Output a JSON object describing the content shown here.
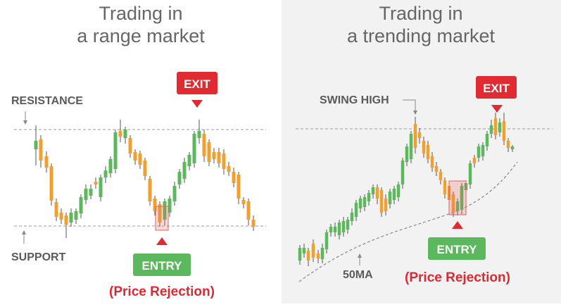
{
  "left_panel": {
    "title_line1": "Trading in",
    "title_line2": "a range market",
    "resistance_label": "RESISTANCE",
    "support_label": "SUPPORT",
    "exit_label": "EXIT",
    "entry_label": "ENTRY",
    "rejection_label": "(Price Rejection)"
  },
  "right_panel": {
    "title_line1": "Trading in",
    "title_line2": "a trending market",
    "swing_high_label": "SWING HIGH",
    "ma_label": "50MA",
    "exit_label": "EXIT",
    "entry_label": "ENTRY",
    "rejection_label": "(Price Rejection)"
  },
  "colors": {
    "bullish": "#5cb85c",
    "bearish": "#f0a030",
    "exit": "#e02b33",
    "entry": "#5cb85c",
    "rejection_text": "#d92b33",
    "right_background": "#f2f2f2"
  }
}
